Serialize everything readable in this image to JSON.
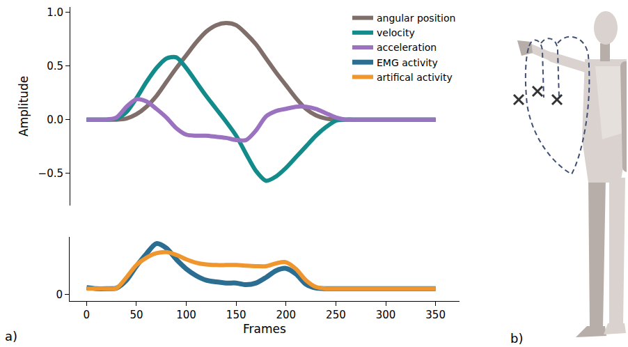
{
  "chart_data": [
    {
      "type": "line",
      "y_label": "Amplitude",
      "x": [
        0,
        10,
        20,
        30,
        40,
        50,
        60,
        70,
        80,
        90,
        100,
        110,
        120,
        130,
        140,
        150,
        160,
        170,
        180,
        190,
        200,
        210,
        220,
        230,
        240,
        250,
        260,
        270,
        280,
        290,
        300,
        310,
        320,
        330,
        340,
        350
      ],
      "ylim": [
        -0.8,
        1.05
      ],
      "yticks": [
        {
          "value": -0.5,
          "label": "−0.5"
        },
        {
          "value": 0,
          "label": "0.0"
        },
        {
          "value": 0.5,
          "label": "0.5"
        },
        {
          "value": 1,
          "label": "1.0"
        }
      ],
      "tick_labels": "y",
      "legend": "upper right",
      "series": [
        {
          "name": "angular position",
          "color": "#7f6e6a",
          "values": [
            0,
            0,
            0,
            0,
            0.01,
            0.05,
            0.12,
            0.22,
            0.35,
            0.48,
            0.6,
            0.72,
            0.82,
            0.88,
            0.9,
            0.88,
            0.8,
            0.7,
            0.57,
            0.44,
            0.32,
            0.2,
            0.1,
            0.04,
            0.01,
            0,
            0,
            0,
            0,
            0,
            0,
            0,
            0,
            0,
            0,
            0
          ]
        },
        {
          "name": "velocity",
          "color": "#138b8b",
          "values": [
            0,
            0,
            0,
            0.01,
            0.07,
            0.2,
            0.35,
            0.48,
            0.57,
            0.58,
            0.48,
            0.35,
            0.22,
            0.1,
            -0.02,
            -0.15,
            -0.32,
            -0.48,
            -0.57,
            -0.53,
            -0.45,
            -0.35,
            -0.25,
            -0.15,
            -0.07,
            -0.01,
            0,
            0,
            0,
            0,
            0,
            0,
            0,
            0,
            0,
            0
          ]
        },
        {
          "name": "acceleration",
          "color": "#9b72c0",
          "values": [
            0,
            0,
            0,
            0.02,
            0.12,
            0.19,
            0.17,
            0.1,
            0.02,
            -0.08,
            -0.14,
            -0.15,
            -0.15,
            -0.16,
            -0.17,
            -0.19,
            -0.19,
            -0.1,
            0.03,
            0.08,
            0.1,
            0.12,
            0.12,
            0.1,
            0.06,
            0.02,
            0,
            0,
            0,
            0,
            0,
            0,
            0,
            0,
            0,
            0
          ]
        }
      ]
    },
    {
      "type": "line",
      "x_label": "Frames",
      "x": [
        0,
        10,
        20,
        30,
        40,
        50,
        60,
        70,
        80,
        90,
        100,
        110,
        120,
        130,
        140,
        150,
        160,
        170,
        180,
        190,
        200,
        210,
        220,
        230,
        240,
        250,
        260,
        270,
        280,
        290,
        300,
        310,
        320,
        330,
        340,
        350
      ],
      "xlim": [
        -17,
        374
      ],
      "xticks": [
        0,
        50,
        100,
        150,
        200,
        250,
        300,
        350
      ],
      "ylim": [
        -0.12,
        1.02
      ],
      "yticks": [
        0
      ],
      "series": [
        {
          "name": "EMG activity",
          "color": "#2b6e92",
          "values": [
            0.12,
            0.1,
            0.1,
            0.11,
            0.25,
            0.5,
            0.72,
            0.9,
            0.82,
            0.62,
            0.45,
            0.33,
            0.25,
            0.22,
            0.2,
            0.2,
            0.17,
            0.2,
            0.3,
            0.42,
            0.46,
            0.36,
            0.18,
            0.11,
            0.1,
            0.1,
            0.1,
            0.1,
            0.1,
            0.1,
            0.1,
            0.1,
            0.1,
            0.1,
            0.1,
            0.1
          ]
        },
        {
          "name": "artifical activity",
          "color": "#f0962e",
          "values": [
            0.1,
            0.1,
            0.1,
            0.11,
            0.3,
            0.52,
            0.65,
            0.73,
            0.75,
            0.7,
            0.62,
            0.56,
            0.53,
            0.52,
            0.52,
            0.52,
            0.51,
            0.5,
            0.5,
            0.55,
            0.57,
            0.45,
            0.25,
            0.13,
            0.1,
            0.1,
            0.1,
            0.1,
            0.1,
            0.1,
            0.1,
            0.1,
            0.1,
            0.1,
            0.1,
            0.1
          ]
        }
      ]
    }
  ],
  "panel_labels": [
    "a)",
    "b)"
  ]
}
